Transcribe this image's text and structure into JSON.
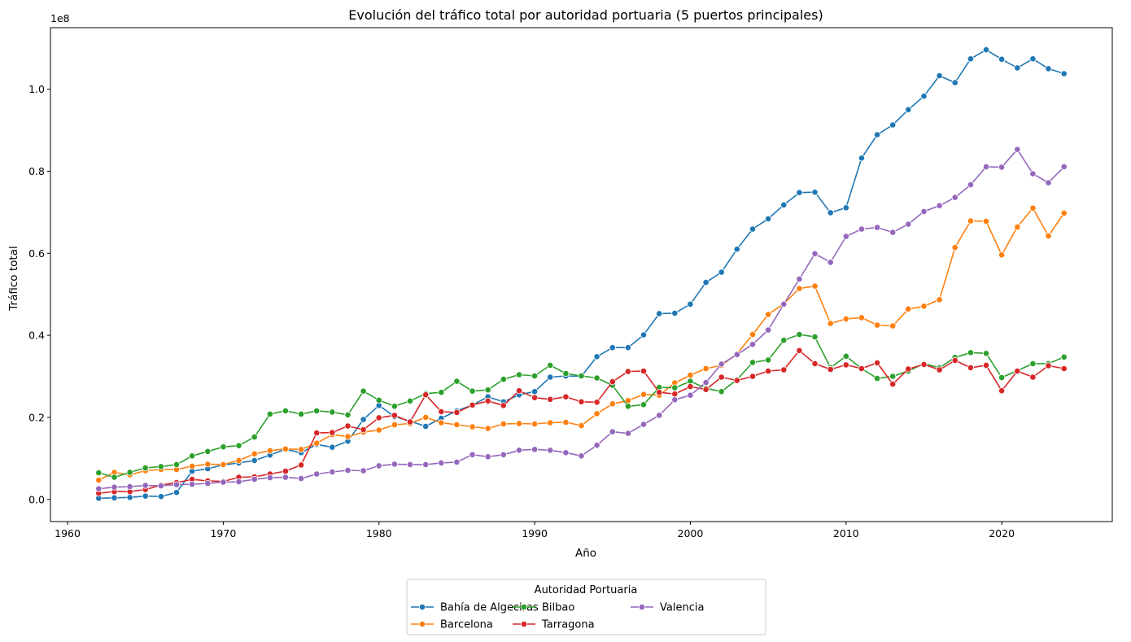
{
  "chart_data": {
    "type": "line",
    "title": "Evolución del tráfico total por autoridad portuaria (5 puertos principales)",
    "xlabel": "Año",
    "ylabel": "Tráfico total",
    "y_offset_label": "1e8",
    "xlim": [
      1958.9,
      2027.1
    ],
    "ylim": [
      -5400000,
      115000000
    ],
    "x_ticks": [
      1960,
      1970,
      1980,
      1990,
      2000,
      2010,
      2020
    ],
    "y_ticks": [
      0,
      20000000,
      40000000,
      60000000,
      80000000,
      100000000
    ],
    "y_tick_labels": [
      "0.0",
      "0.2",
      "0.4",
      "0.6",
      "0.8",
      "1.0"
    ],
    "grid": false,
    "legend_title": "Autoridad Portuaria",
    "legend_position": "bottom-center (below plot)",
    "x": [
      1962,
      1963,
      1964,
      1965,
      1966,
      1967,
      1968,
      1969,
      1970,
      1971,
      1972,
      1973,
      1974,
      1975,
      1976,
      1977,
      1978,
      1979,
      1980,
      1981,
      1982,
      1983,
      1984,
      1985,
      1986,
      1987,
      1988,
      1989,
      1990,
      1991,
      1992,
      1993,
      1994,
      1995,
      1996,
      1997,
      1998,
      1999,
      2000,
      2001,
      2002,
      2003,
      2004,
      2005,
      2006,
      2007,
      2008,
      2009,
      2010,
      2011,
      2012,
      2013,
      2014,
      2015,
      2016,
      2017,
      2018,
      2019,
      2020,
      2021,
      2022,
      2023,
      2024
    ],
    "series": [
      {
        "name": "Bahía de Algeciras",
        "color": "#1f77b4",
        "values": [
          300000,
          400000,
          500000,
          800000,
          700000,
          1700000,
          6900000,
          7500000,
          8400000,
          8900000,
          9500000,
          10800000,
          12200000,
          11400000,
          13400000,
          12700000,
          14200000,
          19500000,
          22900000,
          20200000,
          19100000,
          17800000,
          19800000,
          21600000,
          23000000,
          25000000,
          23800000,
          25500000,
          26300000,
          29800000,
          30100000,
          30000000,
          34800000,
          37000000,
          37000000,
          40100000,
          45300000,
          45400000,
          47600000,
          52900000,
          55400000,
          61000000,
          65900000,
          68400000,
          71800000,
          74800000,
          74900000,
          69900000,
          71100000,
          83200000,
          88900000,
          91300000,
          95000000,
          98300000,
          103300000,
          101600000,
          107400000,
          109600000,
          107300000,
          105200000,
          107400000,
          105000000,
          103800000
        ]
      },
      {
        "name": "Barcelona",
        "color": "#ff7f0e",
        "values": [
          4700000,
          6600000,
          6000000,
          7000000,
          7300000,
          7300000,
          8100000,
          8600000,
          8500000,
          9500000,
          11100000,
          11900000,
          12300000,
          12200000,
          13700000,
          15800000,
          15300000,
          16400000,
          16900000,
          18200000,
          18500000,
          20000000,
          18700000,
          18200000,
          17700000,
          17300000,
          18400000,
          18500000,
          18400000,
          18700000,
          18800000,
          18000000,
          20900000,
          23300000,
          24100000,
          25600000,
          25400000,
          28400000,
          30300000,
          31900000,
          32700000,
          35500000,
          40200000,
          45100000,
          47700000,
          51400000,
          52000000,
          42900000,
          44000000,
          44300000,
          42500000,
          42300000,
          46400000,
          47100000,
          48700000,
          61400000,
          67900000,
          67800000,
          59600000,
          66400000,
          71000000,
          64200000,
          69800000
        ]
      },
      {
        "name": "Bilbao",
        "color": "#2ca02c",
        "values": [
          6500000,
          5400000,
          6600000,
          7700000,
          8000000,
          8500000,
          10600000,
          11700000,
          12800000,
          13100000,
          15200000,
          20800000,
          21600000,
          20800000,
          21600000,
          21300000,
          20600000,
          26400000,
          24200000,
          22700000,
          24000000,
          25800000,
          26100000,
          28800000,
          26400000,
          26700000,
          29300000,
          30400000,
          30100000,
          32700000,
          30700000,
          30100000,
          29600000,
          27800000,
          22700000,
          23100000,
          27300000,
          27200000,
          28800000,
          27100000,
          26300000,
          29200000,
          33400000,
          34000000,
          38800000,
          40200000,
          39600000,
          32100000,
          34900000,
          31900000,
          29500000,
          30000000,
          31300000,
          33100000,
          32100000,
          34600000,
          35800000,
          35600000,
          29700000,
          31400000,
          33100000,
          33100000,
          34700000
        ]
      },
      {
        "name": "Tarragona",
        "color": "#d62728",
        "values": [
          1500000,
          1900000,
          1900000,
          2400000,
          3500000,
          4100000,
          4900000,
          4500000,
          4400000,
          5400000,
          5500000,
          6200000,
          6900000,
          8400000,
          16200000,
          16300000,
          17900000,
          17000000,
          19900000,
          20500000,
          18900000,
          25500000,
          21400000,
          21200000,
          23000000,
          24000000,
          22900000,
          26500000,
          24800000,
          24400000,
          25000000,
          23800000,
          23700000,
          28700000,
          31200000,
          31300000,
          26100000,
          25700000,
          27500000,
          26800000,
          29800000,
          29000000,
          30000000,
          31300000,
          31600000,
          36300000,
          33100000,
          31700000,
          32800000,
          31900000,
          33300000,
          28100000,
          31800000,
          32900000,
          31600000,
          33900000,
          32100000,
          32700000,
          26500000,
          31300000,
          29800000,
          32600000,
          31900000
        ]
      },
      {
        "name": "Valencia",
        "color": "#9467bd",
        "values": [
          2600000,
          3000000,
          3100000,
          3400000,
          3300000,
          3600000,
          3700000,
          3900000,
          4200000,
          4300000,
          4900000,
          5300000,
          5400000,
          5100000,
          6200000,
          6700000,
          7100000,
          7000000,
          8200000,
          8600000,
          8500000,
          8500000,
          8900000,
          9100000,
          10900000,
          10400000,
          10900000,
          12000000,
          12200000,
          12000000,
          11400000,
          10600000,
          13200000,
          16500000,
          16100000,
          18300000,
          20500000,
          24300000,
          25400000,
          28500000,
          33000000,
          35300000,
          37800000,
          41300000,
          47600000,
          53700000,
          59900000,
          57800000,
          64100000,
          65900000,
          66300000,
          65100000,
          67100000,
          70200000,
          71600000,
          73600000,
          76700000,
          81100000,
          81000000,
          85300000,
          79400000,
          77200000,
          81100000
        ]
      }
    ]
  }
}
